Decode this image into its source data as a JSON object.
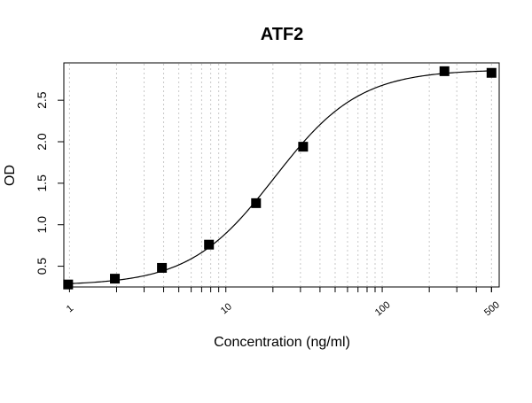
{
  "chart_data": {
    "type": "scatter",
    "title": "ATF2",
    "xlabel": "Concentration (ng/ml)",
    "ylabel": "OD",
    "x_scale": "log",
    "xlim": [
      0.92,
      560
    ],
    "ylim": [
      0.25,
      2.95
    ],
    "grid": "vertical dotted lines at log minor ticks",
    "x_ticks": [
      1,
      10,
      100,
      500
    ],
    "x_tick_labels": [
      "1",
      "10",
      "100",
      "500"
    ],
    "y_ticks": [
      0.5,
      1.0,
      1.5,
      2.0,
      2.5
    ],
    "y_tick_labels": [
      "0.5",
      "1.0",
      "1.5",
      "2.0",
      "2.5"
    ],
    "series": [
      {
        "marker": "square",
        "color": "#000000",
        "points": [
          {
            "x": 0.98,
            "y": 0.28
          },
          {
            "x": 1.95,
            "y": 0.35
          },
          {
            "x": 3.9,
            "y": 0.48
          },
          {
            "x": 7.8,
            "y": 0.76
          },
          {
            "x": 15.6,
            "y": 1.26
          },
          {
            "x": 31.2,
            "y": 1.94
          },
          {
            "x": 250,
            "y": 2.85
          },
          {
            "x": 500,
            "y": 2.83
          }
        ]
      },
      {
        "type": "line",
        "color": "#000000",
        "fit": "4PL",
        "params": {
          "A": 0.27,
          "B": 1.6,
          "C": 20.5,
          "D": 2.87
        }
      }
    ]
  }
}
